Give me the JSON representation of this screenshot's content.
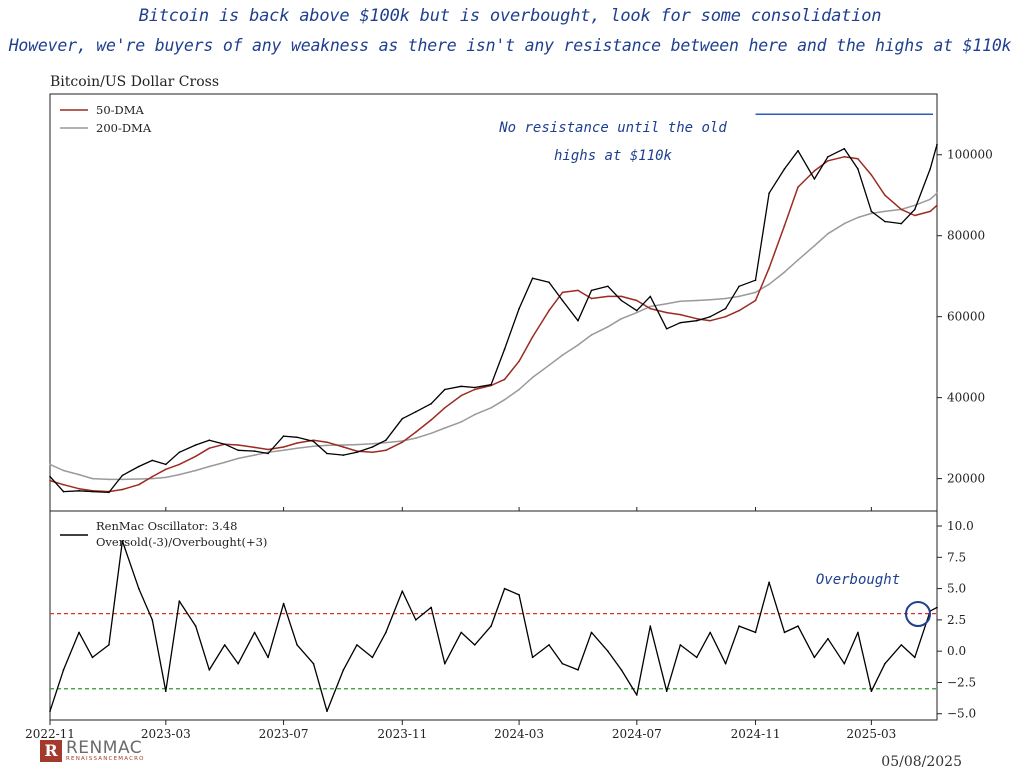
{
  "header": {
    "line1": "Bitcoin is back above $100k but is overbought, look for some consolidation",
    "line2": "However, we're buyers of any weakness as there isn't any resistance between here and the highs at $110k"
  },
  "footer": {
    "date": "05/08/2025",
    "logo_name": "RENMAC",
    "logo_sub": "RENAISSANCEMACRO",
    "logo_mark": "R"
  },
  "colors": {
    "price": "#000000",
    "dma50": "#9c2b22",
    "dma200": "#9a9a9a",
    "oscillator": "#000000",
    "overbought_line": "#e0302a",
    "oversold_line": "#2a9a2a",
    "resistance_line": "#2b5cb8",
    "annotation": "#1f3f8f"
  },
  "chart_data": [
    {
      "type": "line",
      "title": "Bitcoin/US Dollar Cross",
      "xlabel": "",
      "ylabel": "",
      "x_ticks": [
        "2022-11",
        "2023-03",
        "2023-07",
        "2023-11",
        "2024-03",
        "2024-07",
        "2024-11",
        "2025-03"
      ],
      "y_ticks": [
        20000,
        40000,
        60000,
        80000,
        100000
      ],
      "ylim": [
        12000,
        115000
      ],
      "xlim": [
        "2022-11-01",
        "2025-05-08"
      ],
      "legend_position": "top-left",
      "resistance_level": 110000,
      "annotation": {
        "line1": "No resistance until the old",
        "line2": "highs at $110k"
      },
      "x": [
        "2022-11-01",
        "2022-11-15",
        "2022-12-01",
        "2022-12-15",
        "2023-01-01",
        "2023-01-15",
        "2023-02-01",
        "2023-02-15",
        "2023-03-01",
        "2023-03-15",
        "2023-04-01",
        "2023-04-15",
        "2023-05-01",
        "2023-05-15",
        "2023-06-01",
        "2023-06-15",
        "2023-07-01",
        "2023-07-15",
        "2023-08-01",
        "2023-08-15",
        "2023-09-01",
        "2023-09-15",
        "2023-10-01",
        "2023-10-15",
        "2023-11-01",
        "2023-11-15",
        "2023-12-01",
        "2023-12-15",
        "2024-01-01",
        "2024-01-15",
        "2024-02-01",
        "2024-02-15",
        "2024-03-01",
        "2024-03-15",
        "2024-04-01",
        "2024-04-15",
        "2024-05-01",
        "2024-05-15",
        "2024-06-01",
        "2024-06-15",
        "2024-07-01",
        "2024-07-15",
        "2024-08-01",
        "2024-08-15",
        "2024-09-01",
        "2024-09-15",
        "2024-10-01",
        "2024-10-15",
        "2024-11-01",
        "2024-11-15",
        "2024-12-01",
        "2024-12-15",
        "2025-01-01",
        "2025-01-15",
        "2025-02-01",
        "2025-02-15",
        "2025-03-01",
        "2025-03-15",
        "2025-04-01",
        "2025-04-15",
        "2025-05-01",
        "2025-05-08"
      ],
      "series": [
        {
          "name": "",
          "role": "price",
          "values": [
            20500,
            16800,
            17000,
            16800,
            16600,
            20800,
            23000,
            24500,
            23500,
            26500,
            28300,
            29500,
            28500,
            27000,
            26800,
            26200,
            30500,
            30200,
            29200,
            26200,
            25800,
            26500,
            27800,
            29500,
            34800,
            36500,
            38500,
            42000,
            42800,
            42500,
            43200,
            52000,
            62000,
            69500,
            68500,
            64000,
            59000,
            66500,
            67500,
            64000,
            61500,
            65000,
            57000,
            58500,
            59000,
            60000,
            62000,
            67500,
            69000,
            90500,
            96500,
            101000,
            94000,
            99500,
            101500,
            96500,
            86000,
            83500,
            83000,
            86500,
            96500,
            102500
          ]
        },
        {
          "name": "50-DMA",
          "role": "dma50",
          "values": [
            19500,
            18500,
            17500,
            17000,
            16800,
            17300,
            18500,
            20500,
            22300,
            23500,
            25500,
            27500,
            28500,
            28300,
            27700,
            27200,
            27800,
            28800,
            29500,
            29000,
            27800,
            26800,
            26500,
            27000,
            29000,
            31500,
            34500,
            37500,
            40500,
            42000,
            43000,
            44500,
            49000,
            55000,
            61500,
            66000,
            66500,
            64500,
            65000,
            65000,
            64000,
            62000,
            61000,
            60500,
            59500,
            59000,
            60000,
            61500,
            64000,
            72000,
            82500,
            92000,
            96000,
            98500,
            99500,
            99000,
            95000,
            90000,
            86500,
            85000,
            86000,
            87500
          ]
        },
        {
          "name": "200-DMA",
          "role": "dma200",
          "values": [
            23500,
            22000,
            21000,
            20000,
            19800,
            19800,
            19900,
            20000,
            20300,
            21000,
            22000,
            23000,
            24000,
            25000,
            25800,
            26500,
            27000,
            27500,
            28000,
            28200,
            28300,
            28400,
            28600,
            28900,
            29300,
            30000,
            31200,
            32500,
            34000,
            35800,
            37500,
            39500,
            42000,
            45000,
            48000,
            50500,
            53000,
            55500,
            57500,
            59500,
            61000,
            62500,
            63200,
            63800,
            64000,
            64200,
            64500,
            65000,
            66000,
            68000,
            71000,
            74000,
            77500,
            80500,
            83000,
            84500,
            85500,
            86000,
            86500,
            87500,
            89000,
            90500
          ]
        }
      ]
    },
    {
      "type": "line",
      "title": "",
      "xlabel": "",
      "ylabel": "",
      "y_ticks": [
        10.0,
        7.5,
        5.0,
        2.5,
        0.0,
        -2.5,
        -5.0
      ],
      "y_tick_labels": [
        "10.0",
        "7.5",
        "5.0",
        "2.5",
        "0.0",
        "−2.5",
        "−5.0"
      ],
      "ylim": [
        -5.5,
        11.2
      ],
      "legend_position": "top-left",
      "legend": {
        "line1": "RenMac Oscillator: 3.48",
        "line2": "Oversold(-3)/Overbought(+3)"
      },
      "thresholds": {
        "overbought": 3,
        "oversold": -3
      },
      "annotation": "Overbought",
      "x": [
        "2022-11-01",
        "2022-11-15",
        "2022-12-01",
        "2022-12-15",
        "2023-01-01",
        "2023-01-15",
        "2023-02-01",
        "2023-02-15",
        "2023-03-01",
        "2023-03-15",
        "2023-04-01",
        "2023-04-15",
        "2023-05-01",
        "2023-05-15",
        "2023-06-01",
        "2023-06-15",
        "2023-07-01",
        "2023-07-15",
        "2023-08-01",
        "2023-08-15",
        "2023-09-01",
        "2023-09-15",
        "2023-10-01",
        "2023-10-15",
        "2023-11-01",
        "2023-11-15",
        "2023-12-01",
        "2023-12-15",
        "2024-01-01",
        "2024-01-15",
        "2024-02-01",
        "2024-02-15",
        "2024-03-01",
        "2024-03-15",
        "2024-04-01",
        "2024-04-15",
        "2024-05-01",
        "2024-05-15",
        "2024-06-01",
        "2024-06-15",
        "2024-07-01",
        "2024-07-15",
        "2024-08-01",
        "2024-08-15",
        "2024-09-01",
        "2024-09-15",
        "2024-10-01",
        "2024-10-15",
        "2024-11-01",
        "2024-11-15",
        "2024-12-01",
        "2024-12-15",
        "2025-01-01",
        "2025-01-15",
        "2025-02-01",
        "2025-02-15",
        "2025-03-01",
        "2025-03-15",
        "2025-04-01",
        "2025-04-15",
        "2025-05-01",
        "2025-05-08"
      ],
      "series": [
        {
          "name": "RenMac Oscillator",
          "values": [
            -4.8,
            -1.5,
            1.5,
            -0.5,
            0.5,
            8.8,
            5.0,
            2.5,
            -3.2,
            4.0,
            2.0,
            -1.5,
            0.5,
            -1.0,
            1.5,
            -0.5,
            3.8,
            0.5,
            -1.0,
            -4.8,
            -1.5,
            0.5,
            -0.5,
            1.5,
            4.8,
            2.5,
            3.5,
            -1.0,
            1.5,
            0.5,
            2.0,
            5.0,
            4.5,
            -0.5,
            0.5,
            -1.0,
            -1.5,
            1.5,
            0.0,
            -1.5,
            -3.5,
            2.0,
            -3.2,
            0.5,
            -0.5,
            1.5,
            -1.0,
            2.0,
            1.5,
            5.5,
            1.5,
            2.0,
            -0.5,
            1.0,
            -1.0,
            1.5,
            -3.2,
            -1.0,
            0.5,
            -0.5,
            3.2,
            3.5
          ]
        }
      ]
    }
  ]
}
